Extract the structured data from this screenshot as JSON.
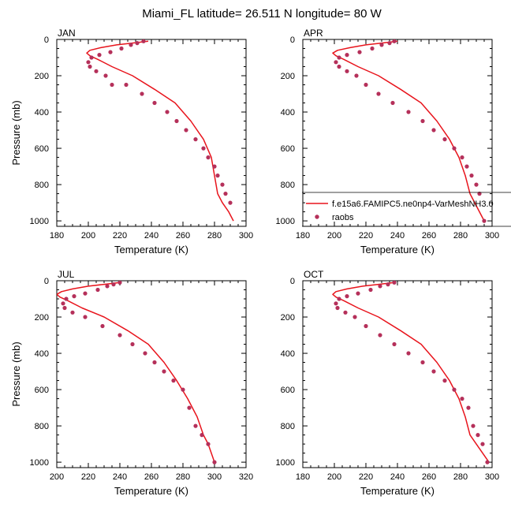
{
  "title": "Miami_FL  latitude= 26.511 N longitude= 80 W",
  "legend": {
    "model_label": "f.e15a6.FAMIPC5.ne0np4-VarMeshNH3.0",
    "obs_label": "raobs"
  },
  "colors": {
    "model": "#e8141c",
    "obs": "#b5305a",
    "axis": "#000000"
  },
  "chart_data": [
    {
      "type": "line",
      "panel_label": "JAN",
      "xlabel": "Temperature (K)",
      "ylabel": "Pressure (mb)",
      "xlim": [
        180,
        300
      ],
      "ylim": [
        0,
        1030
      ],
      "y_inverted": true,
      "xticks": [
        180,
        200,
        220,
        240,
        260,
        280,
        300
      ],
      "yticks": [
        0,
        200,
        400,
        600,
        800,
        1000
      ],
      "series": [
        {
          "kind": "line",
          "x": [
            238,
            228,
            218,
            208,
            201,
            199,
            201,
            206,
            215,
            228,
            242,
            255,
            265,
            273,
            278,
            280,
            282,
            285,
            289,
            292
          ],
          "y": [
            10,
            20,
            30,
            45,
            60,
            75,
            90,
            110,
            150,
            200,
            275,
            350,
            450,
            550,
            650,
            750,
            850,
            900,
            950,
            1000
          ]
        },
        {
          "kind": "scatter",
          "x": [
            235,
            231,
            227,
            221,
            214,
            207,
            202,
            200,
            201,
            205,
            211,
            215,
            224,
            234,
            242,
            250,
            256,
            262,
            268,
            273,
            276,
            280,
            282,
            285,
            287,
            290
          ],
          "y": [
            10,
            20,
            30,
            50,
            70,
            85,
            100,
            125,
            150,
            175,
            200,
            250,
            250,
            300,
            350,
            400,
            450,
            500,
            550,
            600,
            650,
            700,
            750,
            800,
            850,
            900
          ]
        }
      ]
    },
    {
      "type": "line",
      "panel_label": "APR",
      "xlabel": "Temperature (K)",
      "ylabel": "",
      "xlim": [
        180,
        300
      ],
      "ylim": [
        0,
        1030
      ],
      "y_inverted": true,
      "xticks": [
        180,
        200,
        220,
        240,
        260,
        280,
        300
      ],
      "yticks": [
        0,
        200,
        400,
        600,
        800,
        1000
      ],
      "series": [
        {
          "kind": "line",
          "x": [
            240,
            230,
            220,
            210,
            202,
            199,
            201,
            206,
            215,
            228,
            242,
            255,
            265,
            273,
            279,
            283,
            286,
            289,
            292,
            295
          ],
          "y": [
            10,
            20,
            30,
            45,
            60,
            75,
            90,
            110,
            150,
            200,
            275,
            350,
            450,
            550,
            650,
            750,
            850,
            900,
            950,
            1000
          ]
        },
        {
          "kind": "scatter",
          "x": [
            238,
            235,
            230,
            224,
            216,
            208,
            203,
            201,
            203,
            208,
            214,
            220,
            228,
            237,
            247,
            256,
            263,
            270,
            276,
            281,
            284,
            287,
            290,
            292,
            295
          ],
          "y": [
            10,
            20,
            30,
            50,
            70,
            85,
            100,
            125,
            150,
            175,
            200,
            250,
            300,
            350,
            400,
            450,
            500,
            550,
            600,
            650,
            700,
            750,
            800,
            850,
            1000
          ]
        }
      ]
    },
    {
      "type": "line",
      "panel_label": "JUL",
      "xlabel": "Temperature (K)",
      "ylabel": "Pressure (mb)",
      "xlim": [
        200,
        320
      ],
      "ylim": [
        0,
        1030
      ],
      "y_inverted": true,
      "xticks": [
        200,
        220,
        240,
        260,
        280,
        300,
        320
      ],
      "yticks": [
        0,
        200,
        400,
        600,
        800,
        1000
      ],
      "series": [
        {
          "kind": "line",
          "x": [
            240,
            230,
            220,
            210,
            203,
            200,
            202,
            207,
            216,
            230,
            245,
            258,
            268,
            276,
            283,
            289,
            293,
            296,
            298,
            300
          ],
          "y": [
            10,
            20,
            30,
            45,
            60,
            75,
            90,
            110,
            150,
            200,
            275,
            350,
            450,
            550,
            650,
            750,
            850,
            900,
            950,
            1000
          ]
        },
        {
          "kind": "scatter",
          "x": [
            240,
            236,
            232,
            226,
            218,
            211,
            206,
            204,
            205,
            210,
            218,
            229,
            240,
            248,
            256,
            262,
            268,
            274,
            280,
            284,
            288,
            292,
            296,
            300
          ],
          "y": [
            10,
            20,
            30,
            50,
            70,
            85,
            100,
            125,
            150,
            175,
            200,
            250,
            300,
            350,
            400,
            450,
            500,
            550,
            600,
            700,
            800,
            850,
            900,
            1000
          ]
        }
      ]
    },
    {
      "type": "line",
      "panel_label": "OCT",
      "xlabel": "Temperature (K)",
      "ylabel": "",
      "xlim": [
        180,
        300
      ],
      "ylim": [
        0,
        1030
      ],
      "y_inverted": true,
      "xticks": [
        180,
        200,
        220,
        240,
        260,
        280,
        300
      ],
      "yticks": [
        0,
        200,
        400,
        600,
        800,
        1000
      ],
      "series": [
        {
          "kind": "line",
          "x": [
            238,
            228,
            218,
            208,
            201,
            199,
            201,
            206,
            215,
            228,
            242,
            255,
            265,
            273,
            279,
            283,
            286,
            290,
            294,
            298
          ],
          "y": [
            10,
            20,
            30,
            45,
            60,
            75,
            90,
            110,
            150,
            200,
            275,
            350,
            450,
            550,
            650,
            750,
            850,
            900,
            950,
            1000
          ]
        },
        {
          "kind": "scatter",
          "x": [
            238,
            234,
            229,
            223,
            215,
            208,
            203,
            201,
            202,
            207,
            213,
            220,
            229,
            238,
            247,
            256,
            263,
            270,
            276,
            281,
            285,
            288,
            291,
            294,
            297
          ],
          "y": [
            10,
            20,
            30,
            50,
            70,
            85,
            100,
            125,
            150,
            175,
            200,
            250,
            300,
            350,
            400,
            450,
            500,
            550,
            600,
            650,
            700,
            800,
            850,
            900,
            1000
          ]
        }
      ]
    }
  ]
}
